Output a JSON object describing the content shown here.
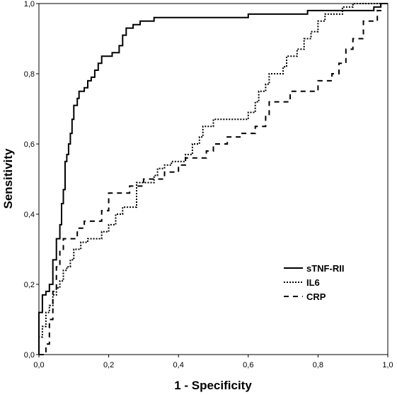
{
  "chart_data": {
    "type": "line",
    "title": "",
    "xlabel": "1 - Specificity",
    "ylabel": "Sensitivity",
    "xlim": [
      0,
      1
    ],
    "ylim": [
      0,
      1
    ],
    "x_ticks": [
      "0,0",
      "0,2",
      "0,4",
      "0,6",
      "0,8",
      "1,0"
    ],
    "y_ticks": [
      "0,0",
      "0,2",
      "0,4",
      "0,6",
      "0,8",
      "1,0"
    ],
    "grid": false,
    "legend_position": "bottom-right",
    "series": [
      {
        "name": "sTNF-RII",
        "style": "solid",
        "points": [
          [
            0,
            0
          ],
          [
            0,
            0.12
          ],
          [
            0.01,
            0.12
          ],
          [
            0.01,
            0.17
          ],
          [
            0.02,
            0.17
          ],
          [
            0.02,
            0.18
          ],
          [
            0.03,
            0.18
          ],
          [
            0.03,
            0.2
          ],
          [
            0.04,
            0.2
          ],
          [
            0.04,
            0.27
          ],
          [
            0.05,
            0.27
          ],
          [
            0.05,
            0.33
          ],
          [
            0.06,
            0.33
          ],
          [
            0.06,
            0.37
          ],
          [
            0.065,
            0.37
          ],
          [
            0.065,
            0.43
          ],
          [
            0.07,
            0.43
          ],
          [
            0.07,
            0.47
          ],
          [
            0.075,
            0.47
          ],
          [
            0.075,
            0.55
          ],
          [
            0.08,
            0.55
          ],
          [
            0.08,
            0.57
          ],
          [
            0.085,
            0.57
          ],
          [
            0.085,
            0.6
          ],
          [
            0.09,
            0.6
          ],
          [
            0.09,
            0.63
          ],
          [
            0.095,
            0.63
          ],
          [
            0.095,
            0.67
          ],
          [
            0.1,
            0.67
          ],
          [
            0.1,
            0.71
          ],
          [
            0.11,
            0.71
          ],
          [
            0.11,
            0.73
          ],
          [
            0.115,
            0.73
          ],
          [
            0.115,
            0.75
          ],
          [
            0.13,
            0.75
          ],
          [
            0.13,
            0.76
          ],
          [
            0.14,
            0.76
          ],
          [
            0.14,
            0.78
          ],
          [
            0.15,
            0.78
          ],
          [
            0.15,
            0.79
          ],
          [
            0.16,
            0.79
          ],
          [
            0.16,
            0.81
          ],
          [
            0.17,
            0.81
          ],
          [
            0.17,
            0.83
          ],
          [
            0.18,
            0.83
          ],
          [
            0.18,
            0.85
          ],
          [
            0.21,
            0.85
          ],
          [
            0.21,
            0.86
          ],
          [
            0.23,
            0.86
          ],
          [
            0.23,
            0.88
          ],
          [
            0.24,
            0.88
          ],
          [
            0.24,
            0.91
          ],
          [
            0.25,
            0.91
          ],
          [
            0.25,
            0.93
          ],
          [
            0.27,
            0.93
          ],
          [
            0.27,
            0.94
          ],
          [
            0.29,
            0.94
          ],
          [
            0.29,
            0.95
          ],
          [
            0.33,
            0.95
          ],
          [
            0.33,
            0.96
          ],
          [
            0.6,
            0.96
          ],
          [
            0.6,
            0.97
          ],
          [
            0.77,
            0.97
          ],
          [
            0.77,
            0.98
          ],
          [
            0.96,
            0.98
          ],
          [
            0.96,
            0.99
          ],
          [
            0.98,
            0.99
          ],
          [
            0.98,
            1.0
          ],
          [
            1.0,
            1.0
          ]
        ]
      },
      {
        "name": "IL6",
        "style": "dotted",
        "points": [
          [
            0,
            0
          ],
          [
            0,
            0.05
          ],
          [
            0.01,
            0.05
          ],
          [
            0.01,
            0.08
          ],
          [
            0.02,
            0.08
          ],
          [
            0.02,
            0.12
          ],
          [
            0.03,
            0.12
          ],
          [
            0.03,
            0.14
          ],
          [
            0.04,
            0.14
          ],
          [
            0.04,
            0.17
          ],
          [
            0.05,
            0.17
          ],
          [
            0.05,
            0.19
          ],
          [
            0.06,
            0.19
          ],
          [
            0.06,
            0.21
          ],
          [
            0.07,
            0.21
          ],
          [
            0.07,
            0.24
          ],
          [
            0.08,
            0.24
          ],
          [
            0.08,
            0.25
          ],
          [
            0.09,
            0.25
          ],
          [
            0.09,
            0.27
          ],
          [
            0.1,
            0.27
          ],
          [
            0.1,
            0.3
          ],
          [
            0.12,
            0.3
          ],
          [
            0.12,
            0.32
          ],
          [
            0.14,
            0.32
          ],
          [
            0.14,
            0.33
          ],
          [
            0.18,
            0.33
          ],
          [
            0.18,
            0.35
          ],
          [
            0.2,
            0.35
          ],
          [
            0.2,
            0.37
          ],
          [
            0.22,
            0.37
          ],
          [
            0.22,
            0.4
          ],
          [
            0.24,
            0.4
          ],
          [
            0.24,
            0.42
          ],
          [
            0.28,
            0.42
          ],
          [
            0.28,
            0.49
          ],
          [
            0.33,
            0.49
          ],
          [
            0.33,
            0.51
          ],
          [
            0.34,
            0.51
          ],
          [
            0.34,
            0.53
          ],
          [
            0.36,
            0.53
          ],
          [
            0.36,
            0.54
          ],
          [
            0.38,
            0.54
          ],
          [
            0.38,
            0.55
          ],
          [
            0.42,
            0.55
          ],
          [
            0.42,
            0.57
          ],
          [
            0.44,
            0.57
          ],
          [
            0.44,
            0.6
          ],
          [
            0.46,
            0.6
          ],
          [
            0.46,
            0.62
          ],
          [
            0.47,
            0.62
          ],
          [
            0.47,
            0.65
          ],
          [
            0.5,
            0.65
          ],
          [
            0.5,
            0.67
          ],
          [
            0.6,
            0.67
          ],
          [
            0.6,
            0.69
          ],
          [
            0.62,
            0.69
          ],
          [
            0.62,
            0.72
          ],
          [
            0.63,
            0.72
          ],
          [
            0.63,
            0.75
          ],
          [
            0.65,
            0.75
          ],
          [
            0.65,
            0.77
          ],
          [
            0.66,
            0.77
          ],
          [
            0.66,
            0.8
          ],
          [
            0.7,
            0.8
          ],
          [
            0.7,
            0.82
          ],
          [
            0.71,
            0.82
          ],
          [
            0.71,
            0.85
          ],
          [
            0.74,
            0.85
          ],
          [
            0.74,
            0.87
          ],
          [
            0.76,
            0.87
          ],
          [
            0.76,
            0.9
          ],
          [
            0.78,
            0.9
          ],
          [
            0.78,
            0.92
          ],
          [
            0.8,
            0.92
          ],
          [
            0.8,
            0.95
          ],
          [
            0.82,
            0.95
          ],
          [
            0.82,
            0.97
          ],
          [
            0.87,
            0.97
          ],
          [
            0.87,
            0.99
          ],
          [
            0.9,
            0.99
          ],
          [
            0.9,
            1.0
          ],
          [
            1.0,
            1.0
          ]
        ]
      },
      {
        "name": "CRP",
        "style": "dashed",
        "points": [
          [
            0,
            0
          ],
          [
            0.02,
            0
          ],
          [
            0.02,
            0.03
          ],
          [
            0.03,
            0.03
          ],
          [
            0.03,
            0.1
          ],
          [
            0.04,
            0.1
          ],
          [
            0.04,
            0.18
          ],
          [
            0.05,
            0.18
          ],
          [
            0.05,
            0.25
          ],
          [
            0.06,
            0.25
          ],
          [
            0.06,
            0.3
          ],
          [
            0.07,
            0.3
          ],
          [
            0.07,
            0.33
          ],
          [
            0.11,
            0.33
          ],
          [
            0.11,
            0.36
          ],
          [
            0.13,
            0.36
          ],
          [
            0.13,
            0.38
          ],
          [
            0.18,
            0.38
          ],
          [
            0.18,
            0.41
          ],
          [
            0.2,
            0.41
          ],
          [
            0.2,
            0.46
          ],
          [
            0.26,
            0.46
          ],
          [
            0.26,
            0.48
          ],
          [
            0.3,
            0.48
          ],
          [
            0.3,
            0.5
          ],
          [
            0.36,
            0.5
          ],
          [
            0.36,
            0.52
          ],
          [
            0.4,
            0.52
          ],
          [
            0.4,
            0.54
          ],
          [
            0.42,
            0.54
          ],
          [
            0.42,
            0.56
          ],
          [
            0.48,
            0.56
          ],
          [
            0.48,
            0.58
          ],
          [
            0.5,
            0.58
          ],
          [
            0.5,
            0.6
          ],
          [
            0.54,
            0.6
          ],
          [
            0.54,
            0.62
          ],
          [
            0.58,
            0.62
          ],
          [
            0.58,
            0.63
          ],
          [
            0.62,
            0.63
          ],
          [
            0.62,
            0.65
          ],
          [
            0.65,
            0.65
          ],
          [
            0.65,
            0.68
          ],
          [
            0.66,
            0.68
          ],
          [
            0.66,
            0.72
          ],
          [
            0.72,
            0.72
          ],
          [
            0.72,
            0.75
          ],
          [
            0.8,
            0.75
          ],
          [
            0.8,
            0.78
          ],
          [
            0.84,
            0.78
          ],
          [
            0.84,
            0.8
          ],
          [
            0.86,
            0.8
          ],
          [
            0.86,
            0.83
          ],
          [
            0.88,
            0.83
          ],
          [
            0.88,
            0.87
          ],
          [
            0.9,
            0.87
          ],
          [
            0.9,
            0.9
          ],
          [
            0.93,
            0.9
          ],
          [
            0.93,
            0.95
          ],
          [
            0.97,
            0.95
          ],
          [
            0.97,
            0.98
          ],
          [
            0.98,
            0.98
          ],
          [
            0.98,
            1.0
          ],
          [
            1.0,
            1.0
          ]
        ]
      }
    ]
  }
}
